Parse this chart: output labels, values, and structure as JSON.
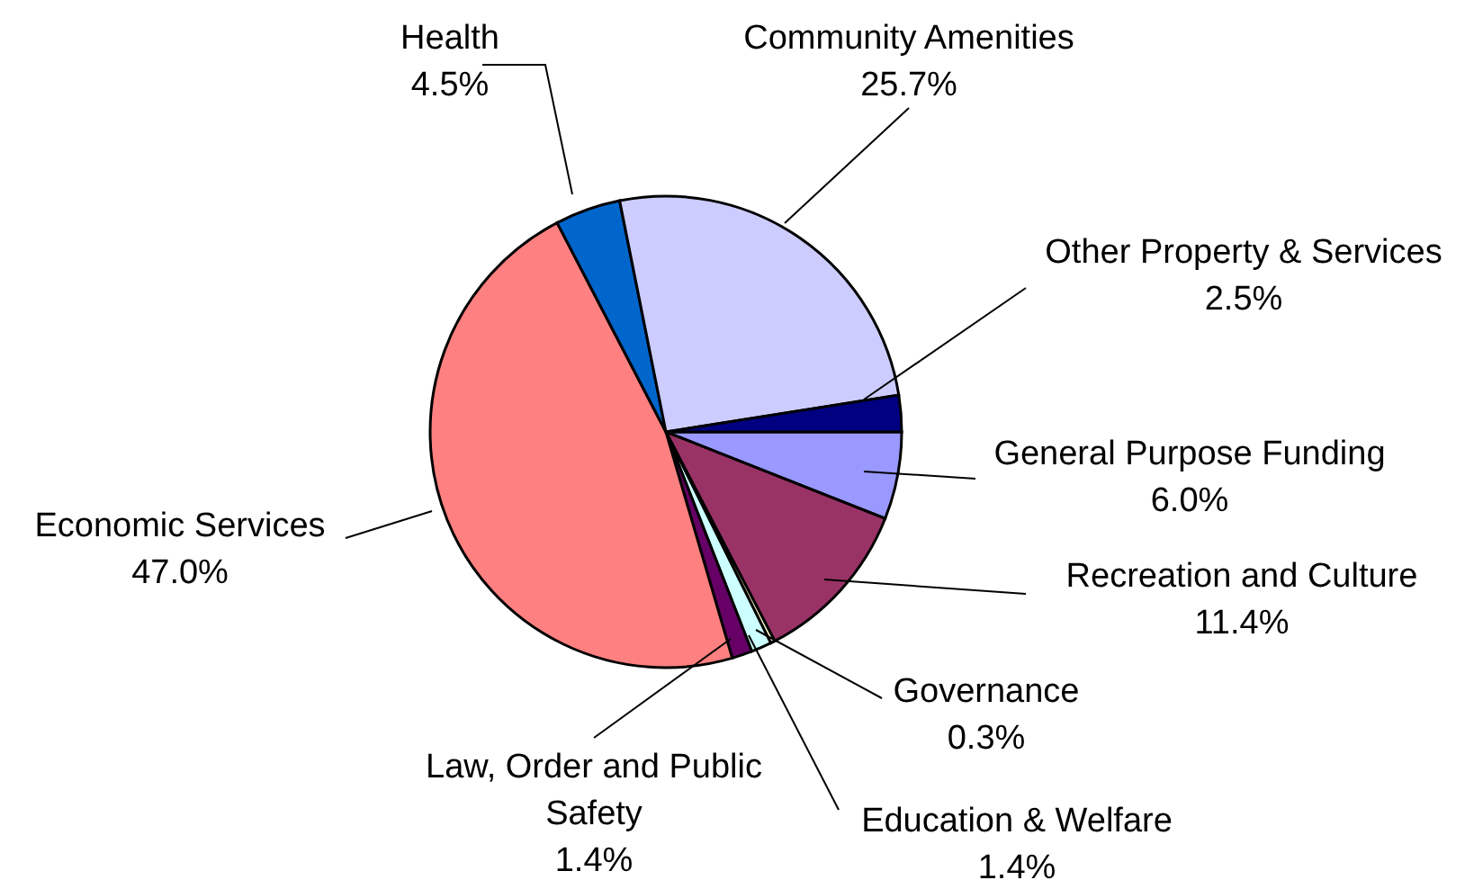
{
  "chart_data": {
    "type": "pie",
    "categories": [
      "General Purpose Funding",
      "Recreation and Culture",
      "Governance",
      "Education & Welfare",
      "Law, Order and Public Safety",
      "Economic Services",
      "Health",
      "Community Amenities",
      "Other Property & Services"
    ],
    "values": [
      6.0,
      11.4,
      0.3,
      1.4,
      1.4,
      47.0,
      4.5,
      25.7,
      2.5
    ],
    "value_labels": [
      "6.0%",
      "11.4%",
      "0.3%",
      "1.4%",
      "1.4%",
      "47.0%",
      "4.5%",
      "25.7%",
      "2.5%"
    ],
    "colors": [
      "#9999ff",
      "#993366",
      "#ffffcc",
      "#ccffff",
      "#660066",
      "#ff8080",
      "#0066cc",
      "#ccccff",
      "#000080"
    ],
    "legend": false
  }
}
